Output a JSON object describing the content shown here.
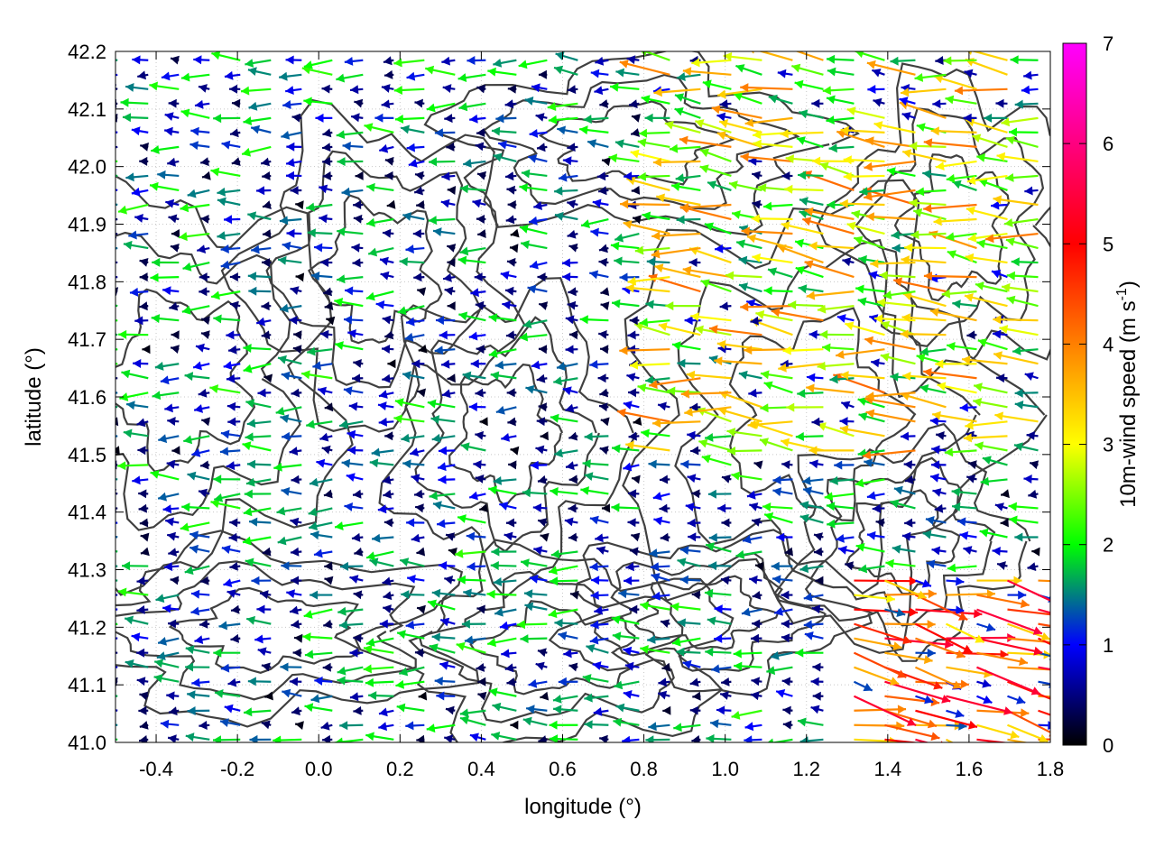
{
  "chart_data": {
    "type": "vector-field",
    "xlabel": "longitude (°)",
    "ylabel": "latitude (°)",
    "xlim": [
      -0.5,
      1.8
    ],
    "ylim": [
      41.0,
      42.2
    ],
    "xticks": [
      -0.4,
      -0.2,
      0.0,
      0.2,
      0.4,
      0.6,
      0.8,
      1.0,
      1.2,
      1.4,
      1.6,
      1.8
    ],
    "xtick_labels": [
      "-0.4",
      "-0.2",
      "0.0",
      "0.2",
      "0.4",
      "0.6",
      "0.8",
      "1.0",
      "1.2",
      "1.4",
      "1.6",
      "1.8"
    ],
    "yticks": [
      41.0,
      41.1,
      41.2,
      41.3,
      41.4,
      41.5,
      41.6,
      41.7,
      41.8,
      41.9,
      42.0,
      42.1,
      42.2
    ],
    "ytick_labels": [
      "41.0",
      "41.1",
      "41.2",
      "41.3",
      "41.4",
      "41.5",
      "41.6",
      "41.7",
      "41.8",
      "41.9",
      "42.0",
      "42.1",
      "42.2"
    ],
    "grid": true,
    "colorbar": {
      "label": "10m-wind speed (m s",
      "label_superscript": "-1",
      "label_close": ")",
      "range": [
        0,
        7
      ],
      "ticks": [
        0,
        1,
        2,
        3,
        4,
        5,
        6,
        7
      ],
      "tick_labels": [
        "0",
        "1",
        "2",
        "3",
        "4",
        "5",
        "6",
        "7"
      ],
      "palette": [
        "#000000",
        "#0000ff",
        "#00ff00",
        "#ffff00",
        "#ff8000",
        "#ff0000",
        "#ff00ff"
      ]
    },
    "wind_field": {
      "description_regions": [
        {
          "lon": [
            -0.5,
            0.3
          ],
          "lat": [
            41.0,
            42.2
          ],
          "u": -1.8,
          "v": 0.0,
          "speed_range": [
            0.2,
            2.2
          ]
        },
        {
          "lon": [
            0.3,
            0.9
          ],
          "lat": [
            41.4,
            42.0
          ],
          "u": -1.2,
          "v": 0.0,
          "speed_range": [
            0.2,
            2.0
          ]
        },
        {
          "lon": [
            0.8,
            1.8
          ],
          "lat": [
            41.5,
            42.2
          ],
          "u": -2.8,
          "v": 0.3,
          "speed_range": [
            1.5,
            4.2
          ]
        },
        {
          "lon": [
            1.3,
            1.8
          ],
          "lat": [
            41.0,
            41.3
          ],
          "u": 4.0,
          "v": -0.9,
          "speed_range": [
            3.0,
            5.5
          ]
        }
      ]
    },
    "contours": "terrain elevation isolines (dark grey)"
  }
}
